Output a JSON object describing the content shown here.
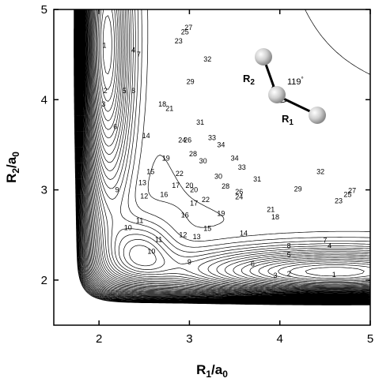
{
  "chart_data": {
    "type": "contour",
    "xlabel_main": "R",
    "xlabel_sub": "1",
    "xlabel_unit_main": "/a",
    "xlabel_unit_sub": "0",
    "ylabel_main": "R",
    "ylabel_sub": "2",
    "ylabel_unit_main": "/a",
    "ylabel_unit_sub": "0",
    "xlim": [
      1.5,
      5
    ],
    "ylim": [
      1.5,
      5
    ],
    "x_ticks": [
      2,
      3,
      4,
      5
    ],
    "y_ticks": [
      2,
      3,
      4,
      5
    ],
    "grid": false,
    "symmetric_in_r1_r2": true,
    "minimum_well": {
      "r1": 4.6,
      "r2": 2.05
    },
    "saddle": {
      "r1": 2.45,
      "r2": 2.3
    },
    "level_labels": [
      {
        "text": "1",
        "x": 4.6,
        "y": 2.06
      },
      {
        "text": "2",
        "x": 4.1,
        "y": 2.07
      },
      {
        "text": "3",
        "x": 3.95,
        "y": 2.05
      },
      {
        "text": "4",
        "x": 4.55,
        "y": 2.38
      },
      {
        "text": "5",
        "x": 4.1,
        "y": 2.28
      },
      {
        "text": "6",
        "x": 3.7,
        "y": 2.18
      },
      {
        "text": "7",
        "x": 4.5,
        "y": 2.44
      },
      {
        "text": "8",
        "x": 4.1,
        "y": 2.38
      },
      {
        "text": "9",
        "x": 3.0,
        "y": 2.2
      },
      {
        "text": "10",
        "x": 2.32,
        "y": 2.58
      },
      {
        "text": "11",
        "x": 2.45,
        "y": 2.66
      },
      {
        "text": "12",
        "x": 2.5,
        "y": 2.93
      },
      {
        "text": "13",
        "x": 2.48,
        "y": 3.08
      },
      {
        "text": "14",
        "x": 3.6,
        "y": 2.52
      },
      {
        "text": "15",
        "x": 3.2,
        "y": 2.57
      },
      {
        "text": "16",
        "x": 2.95,
        "y": 2.72
      },
      {
        "text": "17",
        "x": 2.85,
        "y": 3.05
      },
      {
        "text": "18",
        "x": 3.95,
        "y": 2.7
      },
      {
        "text": "19",
        "x": 3.35,
        "y": 2.74
      },
      {
        "text": "20",
        "x": 3.0,
        "y": 3.05
      },
      {
        "text": "21",
        "x": 3.9,
        "y": 2.78
      },
      {
        "text": "22",
        "x": 3.18,
        "y": 2.89
      },
      {
        "text": "23",
        "x": 4.65,
        "y": 2.88
      },
      {
        "text": "24",
        "x": 3.55,
        "y": 2.92
      },
      {
        "text": "25",
        "x": 4.75,
        "y": 2.95
      },
      {
        "text": "26",
        "x": 3.55,
        "y": 2.98
      },
      {
        "text": "27",
        "x": 4.8,
        "y": 2.99
      },
      {
        "text": "28",
        "x": 3.4,
        "y": 3.04
      },
      {
        "text": "29",
        "x": 4.2,
        "y": 3.01
      },
      {
        "text": "30",
        "x": 3.15,
        "y": 3.32
      },
      {
        "text": "31",
        "x": 3.75,
        "y": 3.12
      },
      {
        "text": "32",
        "x": 4.45,
        "y": 3.2
      },
      {
        "text": "33",
        "x": 3.25,
        "y": 3.58
      },
      {
        "text": "34",
        "x": 3.5,
        "y": 3.35
      }
    ],
    "molecule_annotation": {
      "bond_label_1_main": "R",
      "bond_label_1_sub": "1",
      "bond_label_2_main": "R",
      "bond_label_2_sub": "2",
      "angle": "119",
      "angle_unit": "°"
    }
  }
}
